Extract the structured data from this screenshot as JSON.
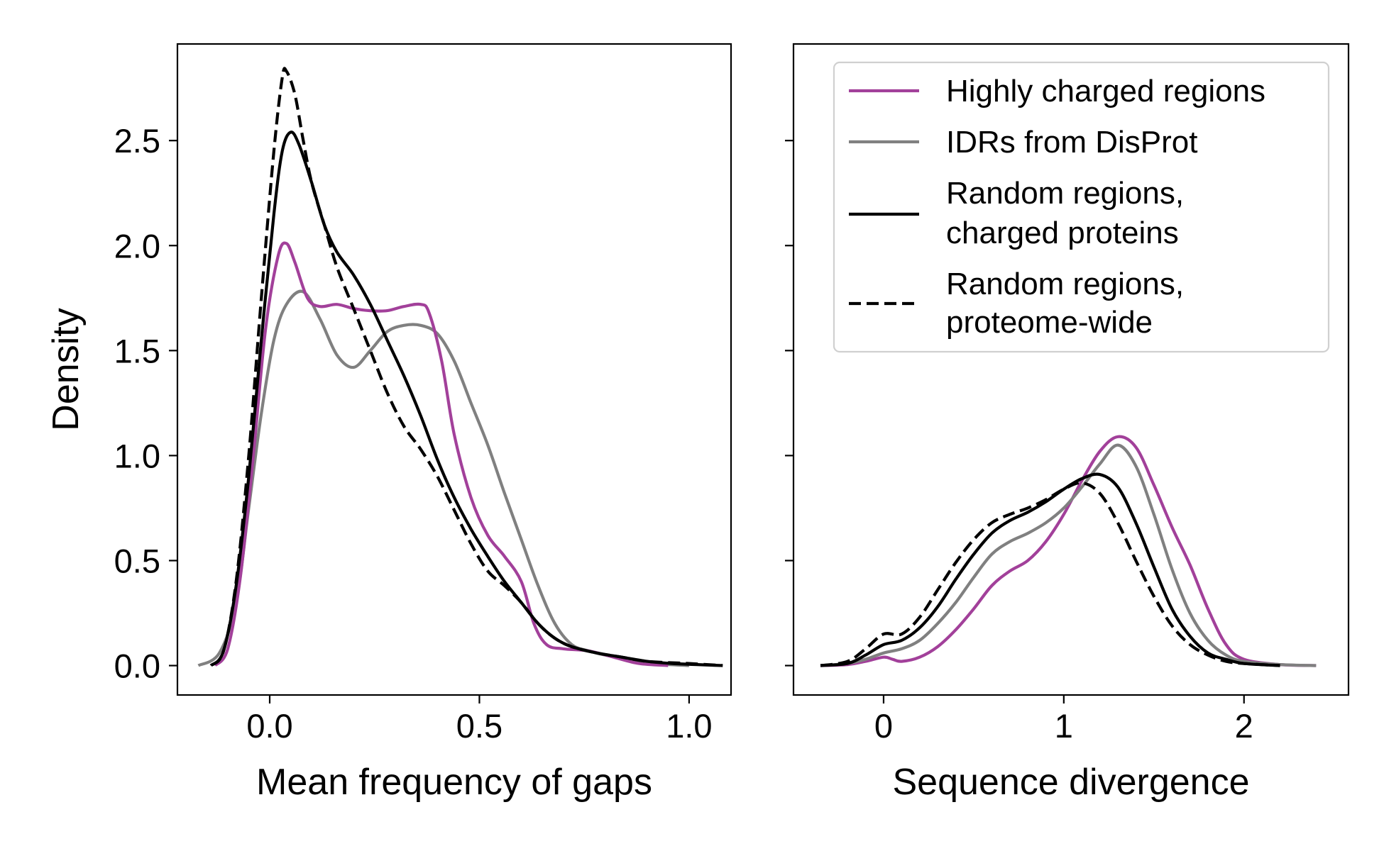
{
  "chart_data": [
    {
      "type": "line",
      "title": "",
      "xlabel": "Mean frequency of gaps",
      "ylabel": "Density",
      "xlim": [
        -0.22,
        1.1
      ],
      "ylim": [
        -0.14,
        2.96
      ],
      "xticks": [
        0.0,
        0.5,
        1.0
      ],
      "xtick_labels": [
        "0.0",
        "0.5",
        "1.0"
      ],
      "yticks": [
        0.0,
        0.5,
        1.0,
        1.5,
        2.0,
        2.5
      ],
      "ytick_labels": [
        "0.0",
        "0.5",
        "1.0",
        "1.5",
        "2.0",
        "2.5"
      ],
      "grid": false,
      "series": [
        {
          "name": "IDRs from DisProt",
          "color": "#808080",
          "style": "solid",
          "points": [
            [
              -0.17,
              0.0
            ],
            [
              -0.12,
              0.06
            ],
            [
              -0.08,
              0.3
            ],
            [
              -0.05,
              0.75
            ],
            [
              -0.02,
              1.2
            ],
            [
              0.01,
              1.55
            ],
            [
              0.04,
              1.72
            ],
            [
              0.08,
              1.78
            ],
            [
              0.12,
              1.65
            ],
            [
              0.16,
              1.48
            ],
            [
              0.2,
              1.42
            ],
            [
              0.24,
              1.5
            ],
            [
              0.28,
              1.59
            ],
            [
              0.32,
              1.62
            ],
            [
              0.36,
              1.62
            ],
            [
              0.4,
              1.58
            ],
            [
              0.44,
              1.45
            ],
            [
              0.48,
              1.25
            ],
            [
              0.52,
              1.05
            ],
            [
              0.56,
              0.82
            ],
            [
              0.6,
              0.6
            ],
            [
              0.64,
              0.38
            ],
            [
              0.68,
              0.2
            ],
            [
              0.72,
              0.1
            ],
            [
              0.76,
              0.07
            ],
            [
              0.8,
              0.05
            ],
            [
              0.86,
              0.03
            ],
            [
              0.92,
              0.01
            ],
            [
              1.0,
              0.0
            ]
          ]
        },
        {
          "name": "Highly charged regions",
          "color": "#a2409a",
          "style": "solid",
          "points": [
            [
              -0.13,
              0.0
            ],
            [
              -0.1,
              0.08
            ],
            [
              -0.07,
              0.42
            ],
            [
              -0.04,
              0.98
            ],
            [
              -0.01,
              1.6
            ],
            [
              0.02,
              1.95
            ],
            [
              0.04,
              2.01
            ],
            [
              0.06,
              1.92
            ],
            [
              0.09,
              1.75
            ],
            [
              0.12,
              1.71
            ],
            [
              0.16,
              1.72
            ],
            [
              0.2,
              1.7
            ],
            [
              0.24,
              1.69
            ],
            [
              0.28,
              1.69
            ],
            [
              0.32,
              1.71
            ],
            [
              0.36,
              1.72
            ],
            [
              0.38,
              1.68
            ],
            [
              0.41,
              1.45
            ],
            [
              0.44,
              1.1
            ],
            [
              0.48,
              0.8
            ],
            [
              0.52,
              0.62
            ],
            [
              0.56,
              0.52
            ],
            [
              0.6,
              0.4
            ],
            [
              0.63,
              0.2
            ],
            [
              0.66,
              0.1
            ],
            [
              0.7,
              0.08
            ],
            [
              0.76,
              0.07
            ],
            [
              0.82,
              0.04
            ],
            [
              0.88,
              0.01
            ],
            [
              0.95,
              0.0
            ]
          ]
        },
        {
          "name": "Random regions, charged proteins",
          "color": "#000000",
          "style": "solid",
          "points": [
            [
              -0.14,
              0.0
            ],
            [
              -0.11,
              0.07
            ],
            [
              -0.08,
              0.38
            ],
            [
              -0.05,
              0.9
            ],
            [
              -0.02,
              1.55
            ],
            [
              0.01,
              2.15
            ],
            [
              0.03,
              2.45
            ],
            [
              0.05,
              2.54
            ],
            [
              0.07,
              2.48
            ],
            [
              0.1,
              2.3
            ],
            [
              0.13,
              2.1
            ],
            [
              0.16,
              1.97
            ],
            [
              0.2,
              1.86
            ],
            [
              0.24,
              1.72
            ],
            [
              0.28,
              1.55
            ],
            [
              0.32,
              1.38
            ],
            [
              0.36,
              1.19
            ],
            [
              0.4,
              0.98
            ],
            [
              0.44,
              0.8
            ],
            [
              0.48,
              0.65
            ],
            [
              0.52,
              0.52
            ],
            [
              0.56,
              0.4
            ],
            [
              0.6,
              0.3
            ],
            [
              0.64,
              0.2
            ],
            [
              0.68,
              0.13
            ],
            [
              0.72,
              0.09
            ],
            [
              0.78,
              0.06
            ],
            [
              0.84,
              0.04
            ],
            [
              0.9,
              0.02
            ],
            [
              0.96,
              0.01
            ],
            [
              1.08,
              0.0
            ]
          ]
        },
        {
          "name": "Random regions, proteome-wide",
          "color": "#000000",
          "style": "dashed",
          "points": [
            [
              -0.14,
              0.0
            ],
            [
              -0.11,
              0.07
            ],
            [
              -0.08,
              0.4
            ],
            [
              -0.05,
              1.0
            ],
            [
              -0.02,
              1.75
            ],
            [
              0.01,
              2.45
            ],
            [
              0.03,
              2.8
            ],
            [
              0.04,
              2.83
            ],
            [
              0.06,
              2.72
            ],
            [
              0.08,
              2.5
            ],
            [
              0.1,
              2.3
            ],
            [
              0.13,
              2.1
            ],
            [
              0.16,
              1.9
            ],
            [
              0.2,
              1.7
            ],
            [
              0.24,
              1.5
            ],
            [
              0.28,
              1.3
            ],
            [
              0.32,
              1.14
            ],
            [
              0.36,
              1.03
            ],
            [
              0.4,
              0.9
            ],
            [
              0.44,
              0.74
            ],
            [
              0.48,
              0.58
            ],
            [
              0.52,
              0.45
            ],
            [
              0.56,
              0.38
            ],
            [
              0.6,
              0.3
            ],
            [
              0.64,
              0.2
            ],
            [
              0.68,
              0.13
            ],
            [
              0.72,
              0.09
            ],
            [
              0.78,
              0.06
            ],
            [
              0.84,
              0.04
            ],
            [
              0.9,
              0.02
            ],
            [
              1.0,
              0.01
            ],
            [
              1.08,
              0.0
            ]
          ]
        }
      ]
    },
    {
      "type": "line",
      "title": "",
      "xlabel": "Sequence divergence",
      "ylabel": "",
      "xlim": [
        -0.5,
        2.58
      ],
      "ylim": [
        -0.14,
        2.96
      ],
      "xticks": [
        0,
        1,
        2
      ],
      "xtick_labels": [
        "0",
        "1",
        "2"
      ],
      "yticks": [
        0.0,
        0.5,
        1.0,
        1.5,
        2.0,
        2.5
      ],
      "ytick_labels": [],
      "grid": false,
      "legend": {
        "placement": "top-right",
        "entries": [
          {
            "lines": [
              "Highly charged regions"
            ],
            "color": "#a2409a",
            "style": "solid"
          },
          {
            "lines": [
              "IDRs from DisProt"
            ],
            "color": "#808080",
            "style": "solid"
          },
          {
            "lines": [
              "Random regions,",
              "charged proteins"
            ],
            "color": "#000000",
            "style": "solid"
          },
          {
            "lines": [
              "Random regions,",
              "proteome-wide"
            ],
            "color": "#000000",
            "style": "dashed"
          }
        ]
      },
      "series": [
        {
          "name": "Highly charged regions",
          "color": "#a2409a",
          "style": "solid",
          "points": [
            [
              -0.35,
              0.0
            ],
            [
              -0.2,
              0.005
            ],
            [
              -0.1,
              0.02
            ],
            [
              0.0,
              0.04
            ],
            [
              0.05,
              0.03
            ],
            [
              0.1,
              0.02
            ],
            [
              0.2,
              0.04
            ],
            [
              0.3,
              0.09
            ],
            [
              0.4,
              0.17
            ],
            [
              0.5,
              0.27
            ],
            [
              0.6,
              0.38
            ],
            [
              0.7,
              0.45
            ],
            [
              0.8,
              0.5
            ],
            [
              0.9,
              0.59
            ],
            [
              1.0,
              0.72
            ],
            [
              1.1,
              0.88
            ],
            [
              1.2,
              1.02
            ],
            [
              1.3,
              1.09
            ],
            [
              1.4,
              1.04
            ],
            [
              1.5,
              0.86
            ],
            [
              1.6,
              0.66
            ],
            [
              1.7,
              0.48
            ],
            [
              1.8,
              0.27
            ],
            [
              1.9,
              0.1
            ],
            [
              2.0,
              0.03
            ],
            [
              2.2,
              0.005
            ],
            [
              2.4,
              0.0
            ]
          ]
        },
        {
          "name": "IDRs from DisProt",
          "color": "#808080",
          "style": "solid",
          "points": [
            [
              -0.35,
              0.0
            ],
            [
              -0.2,
              0.01
            ],
            [
              -0.1,
              0.03
            ],
            [
              0.0,
              0.06
            ],
            [
              0.1,
              0.08
            ],
            [
              0.2,
              0.12
            ],
            [
              0.3,
              0.2
            ],
            [
              0.4,
              0.3
            ],
            [
              0.5,
              0.42
            ],
            [
              0.6,
              0.53
            ],
            [
              0.7,
              0.59
            ],
            [
              0.8,
              0.63
            ],
            [
              0.9,
              0.68
            ],
            [
              1.0,
              0.75
            ],
            [
              1.1,
              0.85
            ],
            [
              1.2,
              0.96
            ],
            [
              1.3,
              1.05
            ],
            [
              1.4,
              0.95
            ],
            [
              1.5,
              0.72
            ],
            [
              1.6,
              0.46
            ],
            [
              1.7,
              0.25
            ],
            [
              1.8,
              0.12
            ],
            [
              1.9,
              0.05
            ],
            [
              2.0,
              0.02
            ],
            [
              2.2,
              0.005
            ],
            [
              2.4,
              0.0
            ]
          ]
        },
        {
          "name": "Random regions, charged proteins",
          "color": "#000000",
          "style": "solid",
          "points": [
            [
              -0.35,
              0.0
            ],
            [
              -0.2,
              0.01
            ],
            [
              -0.1,
              0.05
            ],
            [
              0.0,
              0.1
            ],
            [
              0.1,
              0.12
            ],
            [
              0.2,
              0.18
            ],
            [
              0.3,
              0.28
            ],
            [
              0.4,
              0.41
            ],
            [
              0.5,
              0.53
            ],
            [
              0.6,
              0.63
            ],
            [
              0.7,
              0.69
            ],
            [
              0.8,
              0.73
            ],
            [
              0.9,
              0.78
            ],
            [
              1.0,
              0.84
            ],
            [
              1.1,
              0.89
            ],
            [
              1.2,
              0.91
            ],
            [
              1.3,
              0.85
            ],
            [
              1.4,
              0.68
            ],
            [
              1.5,
              0.47
            ],
            [
              1.6,
              0.27
            ],
            [
              1.7,
              0.14
            ],
            [
              1.8,
              0.06
            ],
            [
              1.9,
              0.03
            ],
            [
              2.0,
              0.01
            ],
            [
              2.2,
              0.0
            ]
          ]
        },
        {
          "name": "Random regions, proteome-wide",
          "color": "#000000",
          "style": "dashed",
          "points": [
            [
              -0.35,
              0.0
            ],
            [
              -0.2,
              0.02
            ],
            [
              -0.1,
              0.08
            ],
            [
              0.0,
              0.15
            ],
            [
              0.1,
              0.15
            ],
            [
              0.2,
              0.23
            ],
            [
              0.3,
              0.36
            ],
            [
              0.4,
              0.49
            ],
            [
              0.5,
              0.6
            ],
            [
              0.6,
              0.68
            ],
            [
              0.7,
              0.72
            ],
            [
              0.8,
              0.75
            ],
            [
              0.9,
              0.79
            ],
            [
              1.0,
              0.84
            ],
            [
              1.1,
              0.87
            ],
            [
              1.2,
              0.82
            ],
            [
              1.3,
              0.68
            ],
            [
              1.4,
              0.5
            ],
            [
              1.5,
              0.33
            ],
            [
              1.6,
              0.19
            ],
            [
              1.7,
              0.1
            ],
            [
              1.8,
              0.05
            ],
            [
              1.9,
              0.02
            ],
            [
              2.0,
              0.01
            ],
            [
              2.2,
              0.0
            ]
          ]
        }
      ]
    }
  ]
}
